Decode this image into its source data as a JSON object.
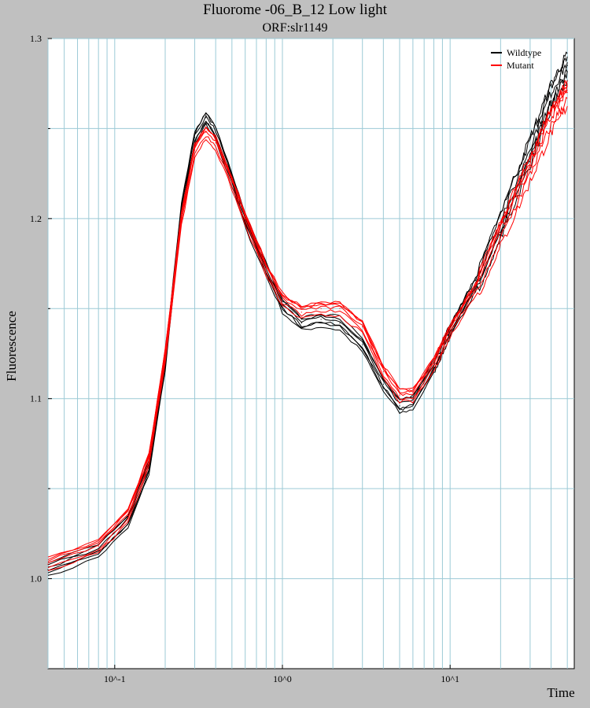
{
  "chart_data": {
    "type": "line",
    "title": "Fluorome -06_B_12 Low light",
    "subtitle": "ORF:slr1149",
    "xlabel": "Time",
    "ylabel": "Fluorescence",
    "x_scale": "log",
    "xlim": [
      0.04,
      55
    ],
    "ylim": [
      0.95,
      1.3
    ],
    "x_ticks": [
      {
        "value": 0.1,
        "label": "10^-1"
      },
      {
        "value": 1,
        "label": "10^0"
      },
      {
        "value": 10,
        "label": "10^1"
      }
    ],
    "y_ticks": [
      {
        "value": 1.0,
        "label": "1.0"
      },
      {
        "value": 1.1,
        "label": "1.1"
      },
      {
        "value": 1.2,
        "label": "1.2"
      },
      {
        "value": 1.3,
        "label": "1.3"
      }
    ],
    "y_minor_gridlines": [
      1.05,
      1.15,
      1.25
    ],
    "grid": true,
    "legend_position": "top-right",
    "x": [
      0.04,
      0.08,
      0.12,
      0.16,
      0.2,
      0.25,
      0.3,
      0.35,
      0.4,
      0.5,
      0.6,
      0.8,
      1.0,
      1.3,
      1.7,
      2.2,
      3.0,
      4.0,
      5.0,
      6.0,
      8.0,
      10.0,
      15.0,
      20.0,
      30.0,
      40.0,
      50.0
    ],
    "series": [
      {
        "name": "Wildtype",
        "color": "#000000",
        "values": [
          1.005,
          1.016,
          1.032,
          1.062,
          1.12,
          1.205,
          1.245,
          1.256,
          1.248,
          1.222,
          1.199,
          1.172,
          1.152,
          1.142,
          1.144,
          1.142,
          1.13,
          1.108,
          1.096,
          1.098,
          1.118,
          1.138,
          1.168,
          1.197,
          1.238,
          1.268,
          1.285
        ]
      },
      {
        "name": "Mutant",
        "color": "#ff0000",
        "values": [
          1.008,
          1.018,
          1.035,
          1.066,
          1.124,
          1.2,
          1.238,
          1.248,
          1.242,
          1.22,
          1.2,
          1.172,
          1.155,
          1.148,
          1.15,
          1.15,
          1.14,
          1.115,
          1.102,
          1.102,
          1.119,
          1.138,
          1.165,
          1.192,
          1.228,
          1.255,
          1.27
        ]
      }
    ]
  }
}
